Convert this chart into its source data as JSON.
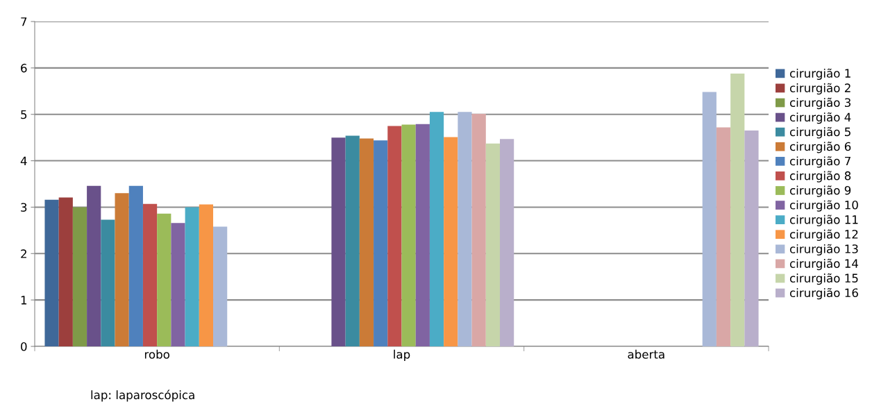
{
  "chart_data": {
    "type": "bar",
    "categories": [
      "robo",
      "lap",
      "aberta"
    ],
    "series": [
      {
        "name": "cirurgião 1",
        "color": "#3f6899",
        "values": [
          3.16,
          null,
          null
        ]
      },
      {
        "name": "cirurgião 2",
        "color": "#9c3f3d",
        "values": [
          3.21,
          null,
          null
        ]
      },
      {
        "name": "cirurgião 3",
        "color": "#7f9a48",
        "values": [
          3.0,
          null,
          null
        ]
      },
      {
        "name": "cirurgião 4",
        "color": "#69518a",
        "values": [
          3.46,
          4.5,
          null
        ]
      },
      {
        "name": "cirurgião 5",
        "color": "#3b8ba0",
        "values": [
          2.73,
          4.54,
          null
        ]
      },
      {
        "name": "cirurgião 6",
        "color": "#cb7b37",
        "values": [
          3.3,
          4.48,
          null
        ]
      },
      {
        "name": "cirurgião 7",
        "color": "#4f81bd",
        "values": [
          3.46,
          4.44,
          null
        ]
      },
      {
        "name": "cirurgião 8",
        "color": "#c0504d",
        "values": [
          3.07,
          4.75,
          null
        ]
      },
      {
        "name": "cirurgião 9",
        "color": "#9bbb59",
        "values": [
          2.86,
          4.78,
          null
        ]
      },
      {
        "name": "cirurgião 10",
        "color": "#8064a2",
        "values": [
          2.66,
          4.79,
          null
        ]
      },
      {
        "name": "cirurgião 11",
        "color": "#4bacc6",
        "values": [
          3.0,
          5.05,
          null
        ]
      },
      {
        "name": "cirurgião 12",
        "color": "#f79646",
        "values": [
          3.06,
          4.51,
          null
        ]
      },
      {
        "name": "cirurgião 13",
        "color": "#a9b8d7",
        "values": [
          2.58,
          5.05,
          5.48
        ]
      },
      {
        "name": "cirurgião 14",
        "color": "#d9a7a6",
        "values": [
          null,
          5.01,
          4.72
        ]
      },
      {
        "name": "cirurgião 15",
        "color": "#c6d5aa",
        "values": [
          null,
          4.37,
          5.88
        ]
      },
      {
        "name": "cirurgião 16",
        "color": "#b9afcb",
        "values": [
          null,
          4.47,
          4.65
        ]
      }
    ],
    "ylim": [
      0,
      7
    ],
    "yticks": [
      0,
      1,
      2,
      3,
      4,
      5,
      6,
      7
    ],
    "grid": "y",
    "legend": "right",
    "annotations": [
      "lap: laparoscópica"
    ]
  }
}
